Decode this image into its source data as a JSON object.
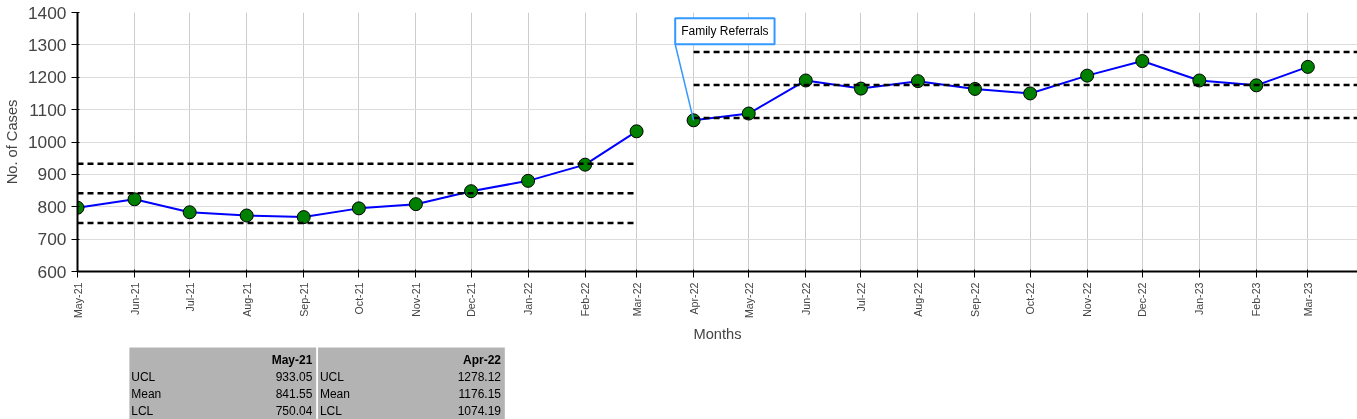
{
  "chart_data": {
    "type": "line",
    "xlabel": "Months",
    "ylabel": "No. of Cases",
    "xlim": [
      "2021-05",
      "2023-03-28"
    ],
    "ylim": [
      600,
      1400
    ],
    "yticks": [
      600,
      700,
      800,
      900,
      1000,
      1100,
      1200,
      1300,
      1400
    ],
    "xticks": [
      {
        "value": "2021-05",
        "label": "May-21"
      },
      {
        "value": "2021-06",
        "label": "Jun-21"
      },
      {
        "value": "2021-07",
        "label": "Jul-21"
      },
      {
        "value": "2021-08",
        "label": "Aug-21"
      },
      {
        "value": "2021-09",
        "label": "Sep-21"
      },
      {
        "value": "2021-10",
        "label": "Oct-21"
      },
      {
        "value": "2021-11",
        "label": "Nov-21"
      },
      {
        "value": "2021-12",
        "label": "Dec-21"
      },
      {
        "value": "2022-01",
        "label": "Jan-22"
      },
      {
        "value": "2022-02",
        "label": "Feb-22"
      },
      {
        "value": "2022-03",
        "label": "Mar-22"
      },
      {
        "value": "2022-04",
        "label": "Apr-22"
      },
      {
        "value": "2022-05",
        "label": "May-22"
      },
      {
        "value": "2022-06",
        "label": "Jun-22"
      },
      {
        "value": "2022-07",
        "label": "Jul-22"
      },
      {
        "value": "2022-08",
        "label": "Aug-22"
      },
      {
        "value": "2022-09",
        "label": "Sep-22"
      },
      {
        "value": "2022-10",
        "label": "Oct-22"
      },
      {
        "value": "2022-11",
        "label": "Nov-22"
      },
      {
        "value": "2022-12",
        "label": "Dec-22"
      },
      {
        "value": "2023-01",
        "label": "Jan-23"
      },
      {
        "value": "2023-02",
        "label": "Feb-23"
      },
      {
        "value": "2023-03",
        "label": "Mar-23"
      }
    ],
    "grid": true,
    "marker": "circle",
    "line_style": "solid",
    "series": [
      {
        "color": "#0000ff",
        "x": [
          "2021-05",
          "2021-06",
          "2021-07",
          "2021-08",
          "2021-09",
          "2021-10",
          "2021-11",
          "2021-12",
          "2022-01",
          "2022-02",
          "2022-03"
        ],
        "values": [
          797,
          823,
          783,
          773,
          768,
          795,
          808,
          848,
          880,
          930,
          1033
        ]
      },
      {
        "color": "#0000ff",
        "x": [
          "2022-04",
          "2022-05",
          "2022-06",
          "2022-07",
          "2022-08",
          "2022-09",
          "2022-10",
          "2022-11",
          "2022-12",
          "2023-01",
          "2023-02",
          "2023-03"
        ],
        "values": [
          1067,
          1088,
          1190,
          1165,
          1188,
          1164,
          1150,
          1205,
          1250,
          1190,
          1175,
          1232
        ]
      },
      {
        "color": "#000000",
        "marker": "none",
        "line_style": "dashed",
        "x": [
          "2021-05",
          "2022-03"
        ],
        "values": [
          933.05,
          933.05
        ]
      },
      {
        "color": "#000000",
        "marker": "none",
        "line_style": "dashed",
        "x": [
          "2021-05",
          "2022-03"
        ],
        "values": [
          841.55,
          841.55
        ]
      },
      {
        "color": "#000000",
        "marker": "none",
        "line_style": "dashed",
        "x": [
          "2021-05",
          "2022-03"
        ],
        "values": [
          750.04,
          750.04
        ]
      },
      {
        "color": "#000000",
        "marker": "none",
        "line_style": "dashed",
        "x": [
          "2022-04",
          "2023-03-28"
        ],
        "values": [
          1278.12,
          1278.12
        ]
      },
      {
        "color": "#000000",
        "marker": "none",
        "line_style": "dashed",
        "x": [
          "2022-04",
          "2023-03-28"
        ],
        "values": [
          1176.15,
          1176.15
        ]
      },
      {
        "color": "#000000",
        "marker": "none",
        "line_style": "dashed",
        "x": [
          "2022-04",
          "2023-03-28"
        ],
        "values": [
          1074.19,
          1074.19
        ]
      }
    ],
    "annotations": [
      {
        "text": "Family Referrals",
        "x": "2022-04",
        "y": 1067
      },
      "May-21",
      "UCL",
      "933.05",
      "Mean",
      "841.55",
      "LCL",
      "750.04",
      "Apr-22",
      "UCL",
      "1278.12",
      "Mean",
      "1176.15",
      "LCL",
      "1074.19"
    ]
  }
}
